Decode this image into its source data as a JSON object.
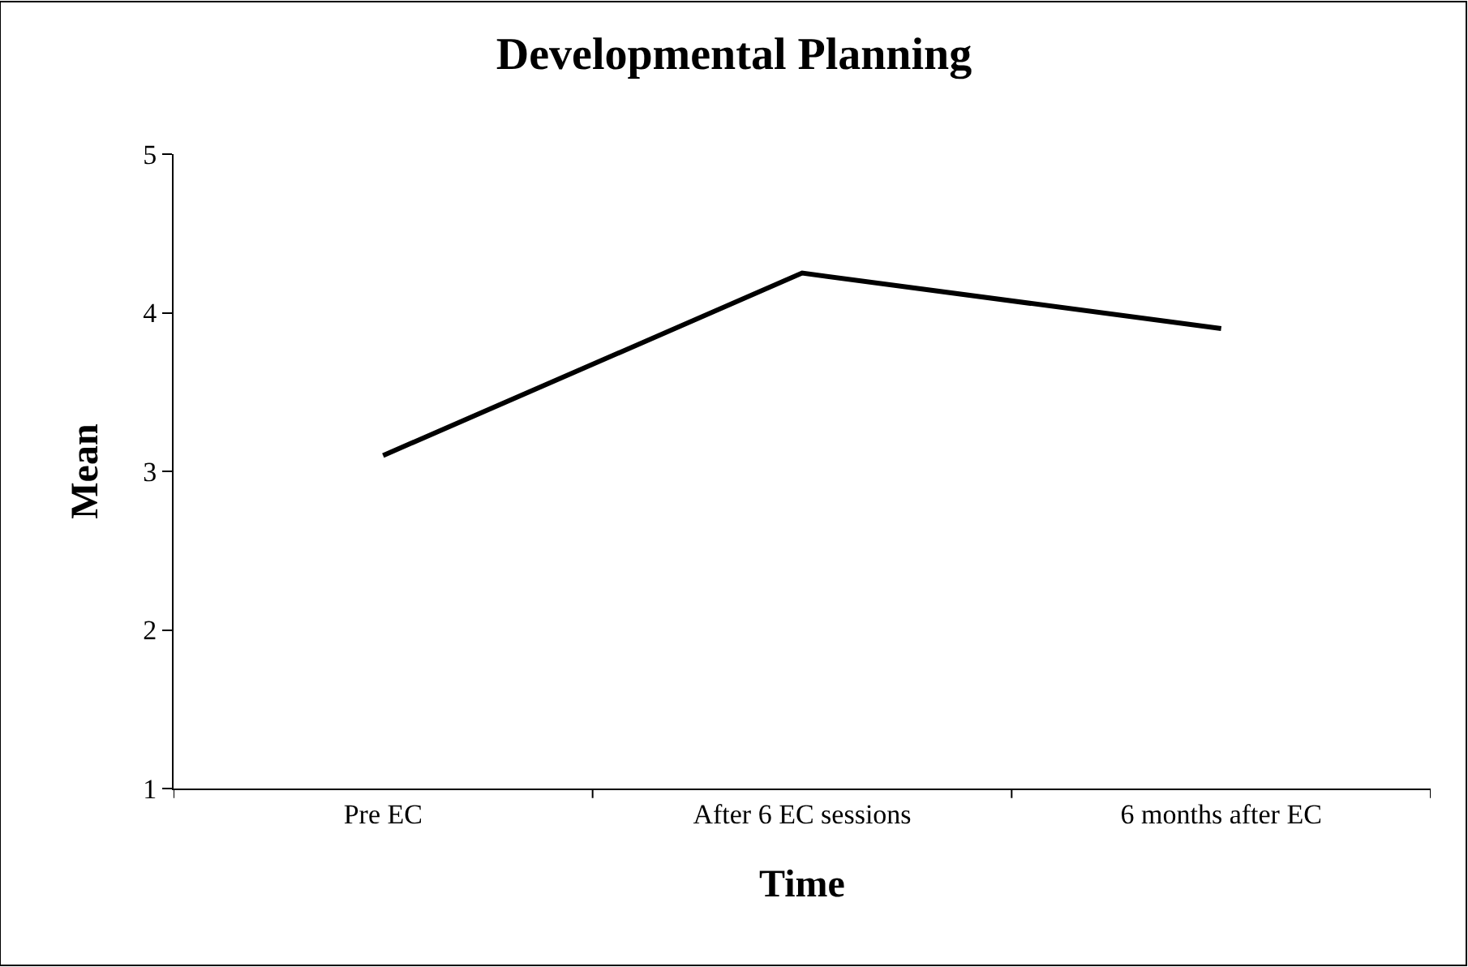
{
  "chart_data": {
    "type": "line",
    "title": "Developmental Planning",
    "xlabel": "Time",
    "ylabel": "Mean",
    "categories": [
      "Pre EC",
      "After 6 EC sessions",
      "6 months after EC"
    ],
    "series": [
      {
        "color": "#000000",
        "values": [
          3.1,
          4.25,
          3.9
        ]
      }
    ],
    "ylim": [
      1,
      5
    ],
    "yticks": [
      1,
      2,
      3,
      4,
      5
    ],
    "line_style": "solid"
  }
}
